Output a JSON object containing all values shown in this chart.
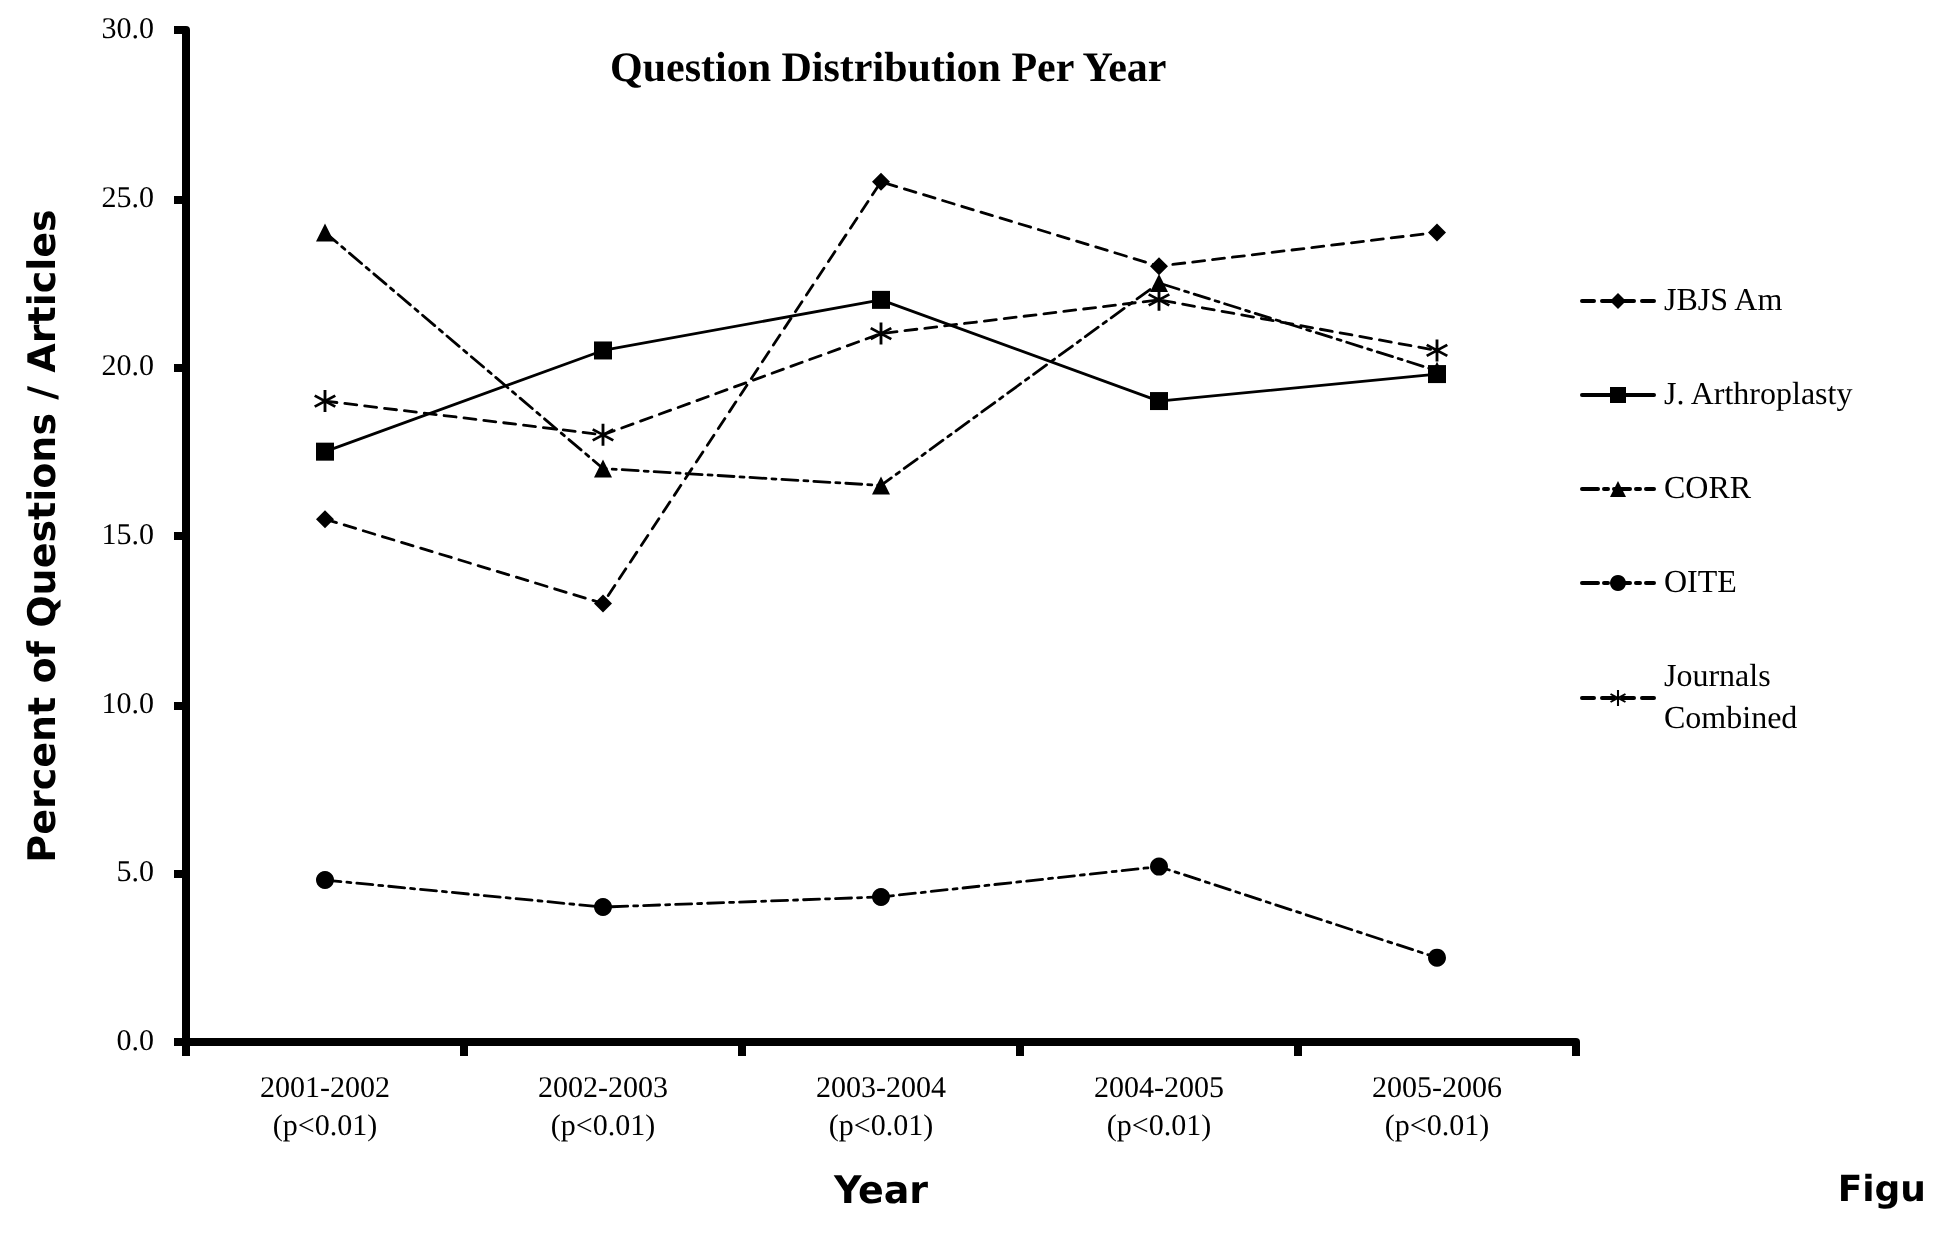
{
  "chart_data": {
    "type": "line",
    "title": "Question Distribution Per Year",
    "xlabel": "Year",
    "ylabel": "Percent of Questions / Articles",
    "categories": [
      "2001-2002\n(p<0.01)",
      "2002-2003\n(p<0.01)",
      "2003-2004\n(p<0.01)",
      "2004-2005\n(p<0.01)",
      "2005-2006\n(p<0.01)"
    ],
    "series": [
      {
        "name": "JBJS Am",
        "color": "#000000",
        "marker": "diamond",
        "line_style": "dashed",
        "values": [
          15.5,
          13.0,
          25.5,
          23.0,
          24.0
        ]
      },
      {
        "name": "J. Arthroplasty",
        "color": "#000000",
        "marker": "square",
        "line_style": "solid",
        "values": [
          17.5,
          20.5,
          22.0,
          19.0,
          19.8
        ]
      },
      {
        "name": "CORR",
        "color": "#000000",
        "marker": "triangle",
        "line_style": "dotted",
        "values": [
          24.0,
          17.0,
          16.5,
          22.5,
          19.9
        ]
      },
      {
        "name": "OITE",
        "color": "#000000",
        "marker": "circle",
        "line_style": "dotted",
        "values": [
          4.8,
          4.0,
          4.3,
          5.2,
          2.5
        ]
      },
      {
        "name": "Journals Combined",
        "color": "#000000",
        "marker": "cross",
        "line_style": "dashed",
        "values": [
          19.0,
          18.0,
          21.0,
          22.0,
          20.5
        ]
      }
    ],
    "ylim": [
      0,
      30
    ],
    "yticks": [
      {
        "value": 0,
        "label": "0.0"
      },
      {
        "value": 5,
        "label": "5.0"
      },
      {
        "value": 10,
        "label": "10.0"
      },
      {
        "value": 15,
        "label": "15.0"
      },
      {
        "value": 20,
        "label": "20.0"
      },
      {
        "value": 25,
        "label": "25.0"
      },
      {
        "value": 30,
        "label": "30.0"
      }
    ],
    "grid": false,
    "legend": "right",
    "annotations": [
      "Figu"
    ]
  }
}
